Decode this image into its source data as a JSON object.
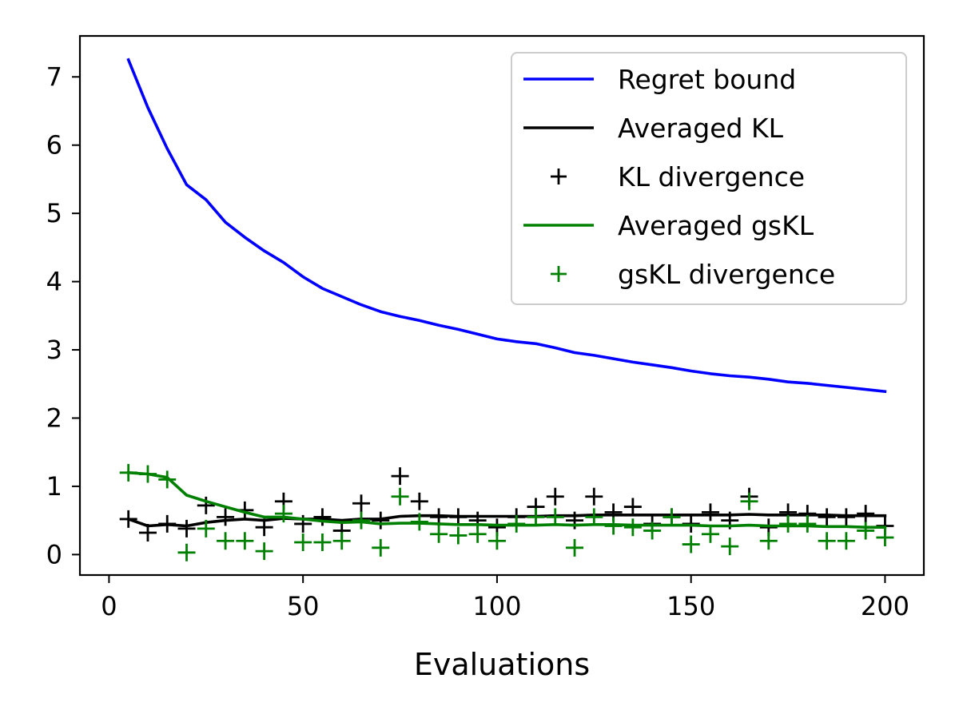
{
  "chart_data": {
    "type": "line",
    "title": "",
    "xlabel": "Evaluations",
    "ylabel": "",
    "xlim": [
      -7.5,
      210
    ],
    "ylim": [
      -0.3,
      7.6
    ],
    "xticks": [
      0,
      50,
      100,
      150,
      200
    ],
    "yticks": [
      0,
      1,
      2,
      3,
      4,
      5,
      6,
      7
    ],
    "grid": false,
    "legend_position": "top-right",
    "x": [
      5,
      10,
      15,
      20,
      25,
      30,
      35,
      40,
      45,
      50,
      55,
      60,
      65,
      70,
      75,
      80,
      85,
      90,
      95,
      100,
      105,
      110,
      115,
      120,
      125,
      130,
      135,
      140,
      145,
      150,
      155,
      160,
      165,
      170,
      175,
      180,
      185,
      190,
      195,
      200
    ],
    "series": [
      {
        "name": "Regret bound",
        "style": "line",
        "color": "#0000ff",
        "values": [
          7.25,
          6.55,
          5.95,
          5.42,
          5.2,
          4.87,
          4.65,
          4.45,
          4.28,
          4.07,
          3.9,
          3.78,
          3.66,
          3.56,
          3.49,
          3.43,
          3.36,
          3.3,
          3.23,
          3.16,
          3.12,
          3.09,
          3.03,
          2.96,
          2.92,
          2.87,
          2.82,
          2.78,
          2.74,
          2.69,
          2.65,
          2.62,
          2.6,
          2.57,
          2.53,
          2.51,
          2.48,
          2.45,
          2.42,
          2.39
        ]
      },
      {
        "name": "Averaged KL",
        "style": "line",
        "color": "#000000",
        "values": [
          0.52,
          0.42,
          0.44,
          0.42,
          0.47,
          0.5,
          0.52,
          0.5,
          0.53,
          0.52,
          0.52,
          0.5,
          0.52,
          0.52,
          0.56,
          0.57,
          0.57,
          0.56,
          0.56,
          0.56,
          0.56,
          0.56,
          0.57,
          0.57,
          0.58,
          0.58,
          0.58,
          0.58,
          0.58,
          0.58,
          0.58,
          0.58,
          0.59,
          0.58,
          0.58,
          0.58,
          0.58,
          0.57,
          0.57,
          0.57
        ]
      },
      {
        "name": "KL divergence",
        "style": "marker",
        "color": "#000000",
        "values": [
          0.52,
          0.32,
          0.45,
          0.38,
          0.72,
          0.55,
          0.65,
          0.4,
          0.78,
          0.45,
          0.55,
          0.35,
          0.75,
          0.5,
          1.15,
          0.78,
          0.55,
          0.55,
          0.5,
          0.4,
          0.55,
          0.7,
          0.85,
          0.5,
          0.85,
          0.62,
          0.7,
          0.45,
          0.55,
          0.45,
          0.62,
          0.5,
          0.85,
          0.4,
          0.62,
          0.6,
          0.55,
          0.55,
          0.6,
          0.42
        ]
      },
      {
        "name": "Averaged gsKL",
        "style": "line",
        "color": "#008000",
        "values": [
          1.2,
          1.18,
          1.13,
          0.87,
          0.78,
          0.7,
          0.62,
          0.55,
          0.55,
          0.52,
          0.49,
          0.47,
          0.48,
          0.45,
          0.46,
          0.46,
          0.45,
          0.44,
          0.44,
          0.43,
          0.43,
          0.43,
          0.44,
          0.43,
          0.44,
          0.44,
          0.43,
          0.43,
          0.43,
          0.43,
          0.42,
          0.42,
          0.43,
          0.42,
          0.42,
          0.42,
          0.41,
          0.41,
          0.4,
          0.4
        ]
      },
      {
        "name": "gsKL divergence",
        "style": "marker",
        "color": "#008000",
        "values": [
          1.2,
          1.18,
          1.1,
          0.03,
          0.38,
          0.2,
          0.2,
          0.05,
          0.6,
          0.18,
          0.18,
          0.2,
          0.5,
          0.1,
          0.85,
          0.48,
          0.3,
          0.28,
          0.3,
          0.2,
          0.45,
          0.55,
          0.55,
          0.1,
          0.55,
          0.42,
          0.4,
          0.35,
          0.55,
          0.15,
          0.3,
          0.12,
          0.78,
          0.2,
          0.45,
          0.45,
          0.2,
          0.2,
          0.35,
          0.25
        ]
      }
    ]
  }
}
